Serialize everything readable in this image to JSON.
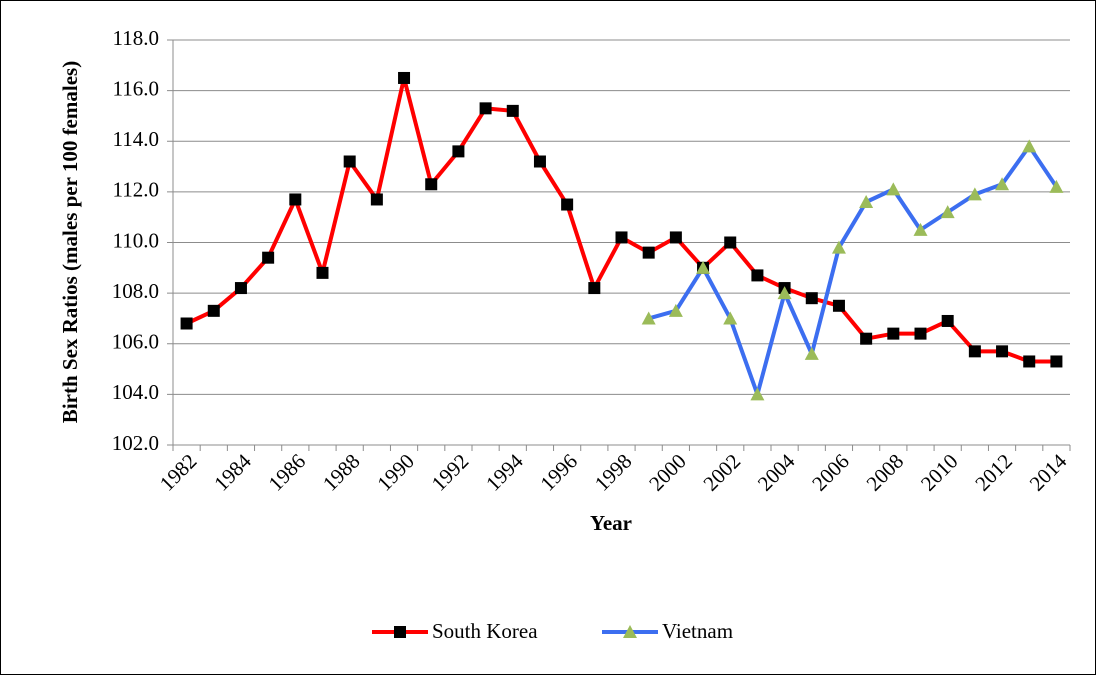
{
  "chart_data": {
    "type": "line",
    "ylabel": "Birth Sex Ratios (males per 100 females)",
    "xlabel": "Year",
    "categories": [
      "1982",
      null,
      "1984",
      null,
      "1986",
      null,
      "1988",
      null,
      "1990",
      null,
      "1992",
      null,
      "1994",
      null,
      "1996",
      null,
      "1998",
      null,
      "2000",
      null,
      "2002",
      null,
      "2004",
      null,
      "2006",
      null,
      "2008",
      null,
      "2010",
      null,
      "2012",
      null,
      "2014"
    ],
    "series": [
      {
        "name": "South Korea",
        "color": "#ff0000",
        "marker": "square",
        "marker_color": "#000000",
        "values": [
          106.8,
          107.3,
          108.2,
          109.4,
          111.7,
          108.8,
          113.2,
          111.7,
          116.5,
          112.3,
          113.6,
          115.3,
          115.2,
          113.2,
          111.5,
          108.2,
          110.2,
          109.6,
          110.2,
          109.0,
          110.0,
          108.7,
          108.2,
          107.8,
          107.5,
          106.2,
          106.4,
          106.4,
          106.9,
          105.7,
          105.7,
          105.3,
          105.3
        ]
      },
      {
        "name": "Vietnam",
        "color": "#3c6ef0",
        "marker": "triangle",
        "marker_color": "#9bbb59",
        "values": [
          null,
          null,
          null,
          null,
          null,
          null,
          null,
          null,
          null,
          null,
          null,
          null,
          null,
          null,
          null,
          null,
          null,
          107.0,
          107.3,
          109.0,
          107.0,
          104.0,
          108.0,
          105.6,
          109.8,
          111.6,
          112.1,
          110.5,
          111.2,
          111.9,
          112.3,
          113.8,
          112.2
        ]
      }
    ],
    "ylim": [
      102,
      118
    ],
    "yticks": [
      {
        "value": 102,
        "label": "102.0"
      },
      {
        "value": 104,
        "label": "104.0"
      },
      {
        "value": 106,
        "label": "106.0"
      },
      {
        "value": 108,
        "label": "108.0"
      },
      {
        "value": 110,
        "label": "110.0"
      },
      {
        "value": 112,
        "label": "112.0"
      },
      {
        "value": 114,
        "label": "114.0"
      },
      {
        "value": 116,
        "label": "116.0"
      },
      {
        "value": 118,
        "label": "118.0"
      }
    ],
    "grid": true,
    "legend": "bottom"
  }
}
